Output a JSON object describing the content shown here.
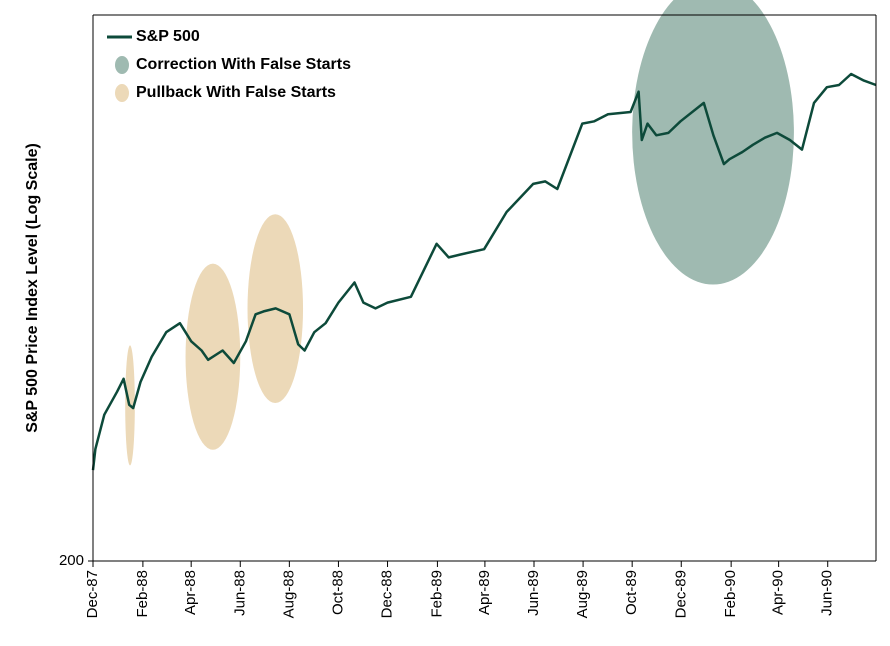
{
  "chart_data": {
    "type": "line",
    "title": "",
    "xlabel": "",
    "ylabel": "S&P 500 Price Index Level (Log Scale)",
    "y_scale": "log",
    "grid": false,
    "legend_position": "top-left",
    "x_ticks": [
      "Dec-87",
      "Feb-88",
      "Apr-88",
      "Jun-88",
      "Aug-88",
      "Oct-88",
      "Dec-88",
      "Feb-89",
      "Apr-89",
      "Jun-89",
      "Aug-89",
      "Oct-89",
      "Dec-89",
      "Feb-90",
      "Apr-90",
      "Jun-90"
    ],
    "y_ticks": [
      {
        "value": 200,
        "label": "200"
      }
    ],
    "x_range": [
      "1987-12-01",
      "1990-07-31"
    ],
    "ylim": [
      200,
      395
    ],
    "colors": {
      "line": "#0d4a3a",
      "correction": "#9fbab1",
      "pullback": "#ecd9b8"
    },
    "series": [
      {
        "name": "S&P 500",
        "x": [
          "1987-12-01",
          "1987-12-04",
          "1987-12-15",
          "1987-12-31",
          "1988-01-08",
          "1988-01-15",
          "1988-01-20",
          "1988-01-29",
          "1988-02-12",
          "1988-03-01",
          "1988-03-18",
          "1988-04-01",
          "1988-04-14",
          "1988-04-22",
          "1988-05-10",
          "1988-05-24",
          "1988-06-08",
          "1988-06-20",
          "1988-06-30",
          "1988-07-15",
          "1988-08-01",
          "1988-08-12",
          "1988-08-20",
          "1988-09-01",
          "1988-09-15",
          "1988-10-01",
          "1988-10-21",
          "1988-11-01",
          "1988-11-16",
          "1988-12-01",
          "1988-12-30",
          "1989-01-31",
          "1989-02-15",
          "1989-03-01",
          "1989-03-31",
          "1989-04-28",
          "1989-05-31",
          "1989-06-15",
          "1989-06-30",
          "1989-07-31",
          "1989-08-15",
          "1989-09-01",
          "1989-09-29",
          "1989-10-09",
          "1989-10-13",
          "1989-10-20",
          "1989-10-31",
          "1989-11-15",
          "1989-11-30",
          "1989-12-29",
          "1990-01-10",
          "1990-01-23",
          "1990-01-30",
          "1990-02-15",
          "1990-02-28",
          "1990-03-15",
          "1990-03-30",
          "1990-04-15",
          "1990-04-30",
          "1990-05-15",
          "1990-05-31",
          "1990-06-15",
          "1990-06-30",
          "1990-07-16",
          "1990-07-31"
        ],
        "values": [
          224,
          230,
          240,
          247,
          251,
          243,
          242,
          250,
          258,
          266,
          269,
          263,
          260,
          257,
          260,
          256,
          263,
          272,
          273,
          274,
          272,
          262,
          260,
          266,
          269,
          276,
          283,
          276,
          274,
          276,
          278,
          297,
          292,
          293,
          295,
          309,
          320,
          321,
          318,
          345,
          346,
          349,
          350,
          359,
          338,
          345,
          340,
          341,
          346,
          354,
          340,
          328,
          330,
          333,
          336,
          339,
          341,
          338,
          334,
          354,
          361,
          362,
          367,
          364,
          362
        ]
      }
    ],
    "legend": [
      {
        "label": "S&P 500",
        "kind": "line"
      },
      {
        "label": "Correction With False Starts",
        "kind": "correction"
      },
      {
        "label": "Pullback With False Starts",
        "kind": "pullback"
      }
    ],
    "highlights": [
      {
        "kind": "pullback",
        "start": "1988-01-10",
        "end": "1988-01-22"
      },
      {
        "kind": "pullback",
        "start": "1988-03-25",
        "end": "1988-06-01"
      },
      {
        "kind": "pullback",
        "start": "1988-06-10",
        "end": "1988-08-18"
      },
      {
        "kind": "correction",
        "start": "1989-10-01",
        "end": "1990-04-20"
      }
    ]
  }
}
